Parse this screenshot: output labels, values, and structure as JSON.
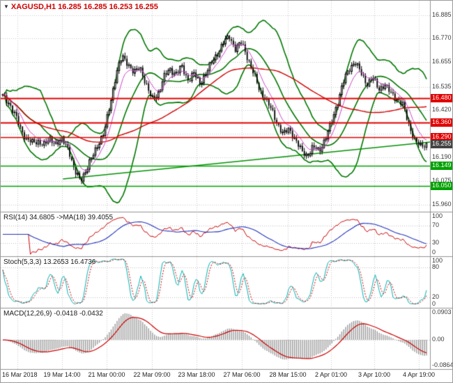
{
  "window": {
    "title": "XAGUSD,H1 16.285 16.285 16.253 16.255",
    "symbol": "XAGUSD",
    "timeframe": "H1"
  },
  "colors": {
    "bollinger": "#007800",
    "trendline": "#009000",
    "level_red": "#e00000",
    "level_green": "#00a000",
    "candle": "#000000",
    "ma_long": "#d00000",
    "ma_short": "#cc44cc",
    "rsi_line": "#cc0000",
    "rsi_ma": "#2233bb",
    "stoch_main": "#00b3b3",
    "stoch_signal": "#cc0000",
    "macd_hist": "#999999",
    "macd_signal": "#cc0000",
    "grid": "#c9c9c9",
    "separator": "#909090",
    "badge_current_bg": "#444444",
    "title_color": "#d00000"
  },
  "chart_data": {
    "type": "candlestick+indicators",
    "symbol": "XAGUSD",
    "timeframe": "H1",
    "quote": {
      "open": 16.285,
      "high": 16.285,
      "low": 16.253,
      "close": 16.255
    },
    "x_labels": [
      "16 Mar 2018",
      "19 Mar 14:00",
      "21 Mar 00:00",
      "22 Mar 09:00",
      "23 Mar 18:00",
      "27 Mar 06:00",
      "28 Mar 15:00",
      "2 Apr 01:00",
      "3 Apr 10:00",
      "4 Apr 19:00"
    ],
    "main": {
      "ylim": [
        15.925,
        16.955
      ],
      "ticks_visible": [
        16.885,
        16.77,
        16.655,
        16.535,
        16.42,
        16.19,
        16.075,
        15.96
      ],
      "grid_values": [
        16.885,
        16.77,
        16.655,
        16.535,
        16.42,
        16.305,
        16.19,
        16.075,
        15.96
      ],
      "levels": [
        {
          "value": 16.48,
          "color": "red"
        },
        {
          "value": 16.36,
          "color": "red"
        },
        {
          "value": 16.29,
          "color": "red"
        },
        {
          "value": 16.149,
          "color": "green"
        },
        {
          "value": 16.05,
          "color": "green"
        }
      ],
      "current_price": 16.255,
      "trendline": {
        "from_frac": 0.145,
        "from_price": 16.085,
        "to_frac": 1.0,
        "to_price": 16.265
      },
      "bollinger": {
        "period": 20,
        "deviation": 2
      },
      "ma_long_period": 60,
      "ma_short_period": 8,
      "closes": [
        16.49,
        16.46,
        16.4,
        16.33,
        16.28,
        16.26,
        16.27,
        16.25,
        16.28,
        16.26,
        16.27,
        16.24,
        16.12,
        16.08,
        16.13,
        16.19,
        16.26,
        16.31,
        16.45,
        16.6,
        16.68,
        16.65,
        16.6,
        16.63,
        16.55,
        16.47,
        16.5,
        16.58,
        16.62,
        16.6,
        16.63,
        16.57,
        16.6,
        16.55,
        16.6,
        16.65,
        16.7,
        16.75,
        16.78,
        16.72,
        16.75,
        16.68,
        16.6,
        16.52,
        16.48,
        16.42,
        16.36,
        16.3,
        16.33,
        16.28,
        16.22,
        16.2,
        16.24,
        16.22,
        16.28,
        16.35,
        16.45,
        16.55,
        16.62,
        16.66,
        16.6,
        16.55,
        16.58,
        16.52,
        16.55,
        16.5,
        16.48,
        16.45,
        16.35,
        16.28,
        16.24,
        16.255
      ]
    },
    "rsi": {
      "label": "RSI(14) 34.6805 ->MA(18) 39.4055",
      "period": 14,
      "ma_period": 18,
      "value": 34.6805,
      "ma_value": 39.4055,
      "ticks": [
        100,
        70,
        30,
        0
      ],
      "levels": [
        70,
        30
      ],
      "ylim": [
        0,
        100
      ]
    },
    "stoch": {
      "label": "Stoch(5,3,3) 13.2653 16.4736",
      "k_period": 5,
      "d_period": 3,
      "slowing": 3,
      "value": 13.2653,
      "signal": 16.4736,
      "ticks": [
        100,
        80,
        20,
        0
      ],
      "levels": [
        80,
        20
      ],
      "ylim": [
        0,
        100
      ]
    },
    "macd": {
      "label": "MACD(12,26,9) -0.0418 -0.0432",
      "fast": 12,
      "slow": 26,
      "signal_period": 9,
      "value": -0.0418,
      "signal": -0.0432,
      "tick_top": "0.0903",
      "tick_mid": "0.00",
      "tick_bottom": "-0.0864",
      "tick_values": [
        0.0903,
        0.0,
        -0.0864
      ]
    }
  }
}
